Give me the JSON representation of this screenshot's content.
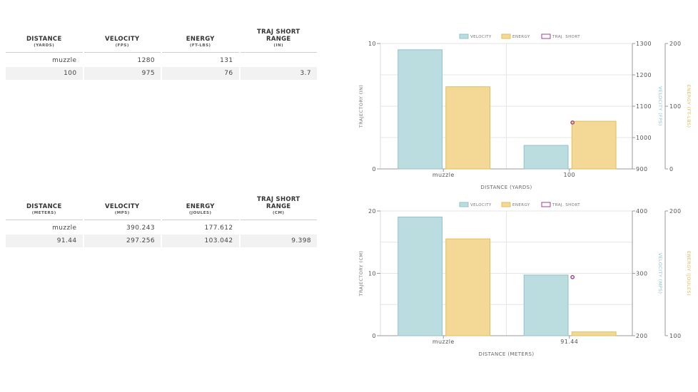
{
  "tables": [
    {
      "headers": [
        {
          "title": "DISTANCE",
          "unit": "(YARDS)"
        },
        {
          "title": "VELOCITY",
          "unit": "(FPS)"
        },
        {
          "title": "ENERGY",
          "unit": "(FT-LBS)"
        },
        {
          "title": "TRAJ SHORT RANGE",
          "unit": "(IN)"
        }
      ],
      "rows": [
        [
          "muzzle",
          "1280",
          "131",
          ""
        ],
        [
          "100",
          "975",
          "76",
          "3.7"
        ]
      ]
    },
    {
      "headers": [
        {
          "title": "DISTANCE",
          "unit": "(METERS)"
        },
        {
          "title": "VELOCITY",
          "unit": "(MPS)"
        },
        {
          "title": "ENERGY",
          "unit": "(JOULES)"
        },
        {
          "title": "TRAJ SHORT RANGE",
          "unit": "(CM)"
        }
      ],
      "rows": [
        [
          "muzzle",
          "390.243",
          "177.612",
          ""
        ],
        [
          "91.44",
          "297.256",
          "103.042",
          "9.398"
        ]
      ]
    }
  ],
  "colors": {
    "velocity": "#bcdde0",
    "velocity_edge": "#8fc3c8",
    "energy": "#f3d995",
    "energy_edge": "#e3be5a",
    "traj": "#a0408c",
    "grid": "#e6e6e6",
    "axis": "#999999"
  },
  "chart_data": [
    {
      "type": "bar",
      "categories": [
        "muzzle",
        "100"
      ],
      "legend": [
        "VELOCITY",
        "ENERGY",
        "TRAJ. SHORT"
      ],
      "legend_position": "top-center",
      "xlabel": "DISTANCE (YARDS)",
      "y_left": {
        "label": "TRAJECTORY (IN)",
        "range": [
          0,
          10
        ],
        "ticks": [
          0,
          10
        ]
      },
      "y_velocity": {
        "label": "VELOCITY (FPS)",
        "range": [
          900,
          1300
        ],
        "ticks": [
          900,
          1000,
          1100,
          1200,
          1300
        ]
      },
      "y_energy": {
        "label": "ENERGY (FT-LBS)",
        "range": [
          0,
          200
        ],
        "ticks": [
          0,
          100,
          200
        ]
      },
      "series": [
        {
          "name": "VELOCITY",
          "axis": "velocity",
          "values": [
            1280,
            975
          ]
        },
        {
          "name": "ENERGY",
          "axis": "energy",
          "values": [
            131,
            76
          ]
        },
        {
          "name": "TRAJ. SHORT",
          "axis": "left",
          "values": [
            null,
            3.7
          ]
        }
      ],
      "grid": true
    },
    {
      "type": "bar",
      "categories": [
        "muzzle",
        "91.44"
      ],
      "legend": [
        "VELOCITY",
        "ENERGY",
        "TRAJ. SHORT"
      ],
      "legend_position": "top-center",
      "xlabel": "DISTANCE (METERS)",
      "y_left": {
        "label": "TRAJECTORY (CM)",
        "range": [
          0,
          20
        ],
        "ticks": [
          0,
          10,
          20
        ]
      },
      "y_velocity": {
        "label": "VELOCITY (MPS)",
        "range": [
          200,
          400
        ],
        "ticks": [
          200,
          300,
          400
        ]
      },
      "y_energy": {
        "label": "ENERGY (JOULES)",
        "range": [
          100,
          200
        ],
        "ticks": [
          100,
          200
        ]
      },
      "series": [
        {
          "name": "VELOCITY",
          "axis": "velocity",
          "values": [
            390.243,
            297.256
          ]
        },
        {
          "name": "ENERGY",
          "axis": "energy",
          "values": [
            177.612,
            103.042
          ]
        },
        {
          "name": "TRAJ. SHORT",
          "axis": "left",
          "values": [
            null,
            9.398
          ]
        }
      ],
      "grid": true
    }
  ]
}
